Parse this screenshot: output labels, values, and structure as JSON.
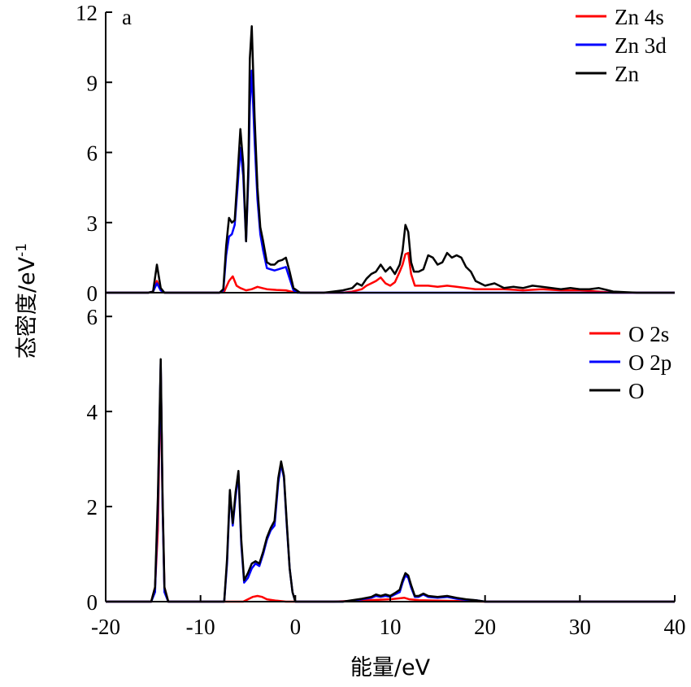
{
  "chart_data": [
    {
      "type": "line",
      "panel_tag": "a",
      "x_range": [
        -20,
        40
      ],
      "ylim": [
        0,
        12
      ],
      "y_ticks": [
        "0",
        "3",
        "6",
        "9",
        "12"
      ],
      "legend_position": "top-right",
      "series": [
        {
          "name": "Zn 4s",
          "color": "#ff0000",
          "x": [
            -20,
            -15.5,
            -15,
            -14.6,
            -14.2,
            -13.8,
            -13,
            -8,
            -7.5,
            -7,
            -6.6,
            -6.2,
            -5.8,
            -5.2,
            -4.6,
            -4,
            -3.5,
            -3,
            -2,
            -1,
            -0.2,
            1,
            3,
            5,
            6,
            7,
            7.5,
            8,
            8.5,
            9,
            9.5,
            10,
            10.5,
            11,
            11.3,
            11.6,
            11.9,
            12.2,
            12.6,
            13,
            14,
            15,
            16,
            17,
            18,
            19,
            20,
            22,
            24,
            26,
            28,
            30,
            32,
            33.5,
            36,
            40
          ],
          "y": [
            0,
            0,
            0.05,
            0.5,
            0.1,
            0,
            0,
            0,
            0.05,
            0.5,
            0.7,
            0.3,
            0.2,
            0.1,
            0.15,
            0.25,
            0.2,
            0.15,
            0.12,
            0.1,
            0.02,
            0,
            0,
            0,
            0.05,
            0.15,
            0.3,
            0.4,
            0.5,
            0.65,
            0.4,
            0.3,
            0.45,
            0.9,
            1.2,
            1.65,
            1.7,
            0.8,
            0.3,
            0.3,
            0.3,
            0.25,
            0.3,
            0.25,
            0.2,
            0.15,
            0.15,
            0.15,
            0.1,
            0.15,
            0.1,
            0.1,
            0.05,
            0,
            0,
            0
          ]
        },
        {
          "name": "Zn 3d",
          "color": "#0000ff",
          "x": [
            -20,
            -15.5,
            -15,
            -14.6,
            -14.2,
            -13.8,
            -13,
            -8,
            -7.6,
            -7.3,
            -7.0,
            -6.7,
            -6.4,
            -6.1,
            -5.8,
            -5.5,
            -5.2,
            -4.95,
            -4.8,
            -4.6,
            -4.3,
            -4.0,
            -3.7,
            -3.4,
            -3.0,
            -2.6,
            -2.2,
            -1.8,
            -1.4,
            -1.0,
            -0.6,
            -0.2,
            0.2,
            3,
            10,
            20,
            30,
            40
          ],
          "y": [
            0,
            0,
            0.05,
            0.4,
            0.1,
            0,
            0,
            0,
            0.1,
            1.6,
            2.4,
            2.5,
            2.9,
            4.5,
            6.2,
            5.0,
            2.2,
            5.0,
            8.0,
            9.5,
            6.5,
            4.0,
            2.5,
            1.8,
            1.05,
            1.0,
            0.95,
            1.0,
            1.05,
            1.1,
            0.6,
            0.1,
            0,
            0,
            0,
            0,
            0,
            0
          ]
        },
        {
          "name": "Zn",
          "color": "#000000",
          "x": [
            -20,
            -15.5,
            -15,
            -14.6,
            -14.2,
            -13.8,
            -13,
            -8,
            -7.6,
            -7.3,
            -7.0,
            -6.7,
            -6.4,
            -6.1,
            -5.8,
            -5.5,
            -5.2,
            -4.95,
            -4.8,
            -4.6,
            -4.3,
            -4.0,
            -3.7,
            -3.4,
            -3.0,
            -2.6,
            -2.2,
            -1.8,
            -1.4,
            -1.0,
            -0.6,
            -0.2,
            0.5,
            2,
            3,
            4,
            5,
            6,
            6.5,
            7,
            7.5,
            8,
            8.5,
            9,
            9.5,
            10,
            10.5,
            11,
            11.3,
            11.6,
            11.9,
            12.2,
            12.5,
            13,
            13.5,
            14,
            14.5,
            15,
            15.5,
            16,
            16.5,
            17,
            17.5,
            18,
            18.5,
            19,
            20,
            21,
            22,
            23,
            24,
            25,
            26,
            27,
            28,
            29,
            30,
            31,
            32,
            33,
            33.5,
            36,
            40
          ],
          "y": [
            0,
            0,
            0.05,
            1.2,
            0.2,
            0,
            0,
            0,
            0.15,
            2.0,
            3.2,
            3.0,
            3.1,
            5.0,
            7.0,
            5.5,
            2.2,
            5.5,
            10.0,
            11.4,
            7.5,
            4.5,
            2.8,
            2.2,
            1.3,
            1.2,
            1.2,
            1.35,
            1.4,
            1.5,
            0.9,
            0.2,
            0,
            0,
            0,
            0.05,
            0.1,
            0.2,
            0.4,
            0.3,
            0.6,
            0.8,
            0.9,
            1.2,
            0.9,
            1.1,
            0.8,
            1.2,
            1.8,
            2.9,
            2.6,
            1.3,
            0.9,
            0.9,
            1.0,
            1.6,
            1.5,
            1.2,
            1.3,
            1.7,
            1.5,
            1.6,
            1.5,
            1.1,
            0.9,
            0.5,
            0.3,
            0.4,
            0.2,
            0.25,
            0.2,
            0.3,
            0.25,
            0.2,
            0.15,
            0.2,
            0.15,
            0.15,
            0.2,
            0.1,
            0.05,
            0,
            0
          ]
        }
      ]
    },
    {
      "type": "line",
      "x_range": [
        -20,
        40
      ],
      "ylim": [
        0,
        6.5
      ],
      "x_ticks": [
        "-20",
        "-10",
        "0",
        "10",
        "20",
        "30",
        "40"
      ],
      "y_ticks": [
        "0",
        "2",
        "4",
        "6"
      ],
      "legend_position": "top-right",
      "series": [
        {
          "name": "O 2s",
          "color": "#ff0000",
          "x": [
            -20,
            -15.2,
            -14.8,
            -14.5,
            -14.2,
            -14.0,
            -13.8,
            -13.4,
            -8,
            -7.5,
            -7,
            -6.5,
            -6,
            -5.5,
            -5,
            -4.5,
            -4,
            -3.5,
            -3,
            -2,
            -1,
            0,
            1,
            4,
            10,
            11.5,
            12,
            13,
            20,
            40
          ],
          "y": [
            0,
            0,
            0.3,
            1.5,
            4.9,
            2.0,
            0.3,
            0,
            0,
            0,
            0,
            0,
            0,
            0,
            0.05,
            0.1,
            0.12,
            0.1,
            0.05,
            0.02,
            0,
            0,
            0,
            0,
            0.05,
            0.08,
            0.05,
            0.03,
            0,
            0
          ]
        },
        {
          "name": "O 2p",
          "color": "#0000ff",
          "x": [
            -20,
            -15.2,
            -14.8,
            -14.5,
            -14.2,
            -14.0,
            -13.8,
            -13.4,
            -8,
            -7.5,
            -7.2,
            -6.9,
            -6.6,
            -6.3,
            -6.0,
            -5.7,
            -5.4,
            -5.0,
            -4.6,
            -4.2,
            -3.8,
            -3.4,
            -3.0,
            -2.6,
            -2.2,
            -1.8,
            -1.5,
            -1.2,
            -0.9,
            -0.6,
            -0.3,
            0,
            3,
            5,
            6,
            7,
            8,
            8.5,
            9,
            9.5,
            10,
            10.5,
            11,
            11.3,
            11.6,
            11.9,
            12.2,
            12.6,
            13,
            13.5,
            14,
            15,
            16,
            17,
            18,
            19,
            20,
            40
          ],
          "y": [
            0,
            0,
            0.2,
            2.0,
            5.0,
            2.0,
            0.2,
            0,
            0,
            0,
            0.8,
            2.3,
            1.6,
            2.2,
            2.7,
            1.2,
            0.4,
            0.5,
            0.7,
            0.8,
            0.75,
            1.0,
            1.3,
            1.5,
            1.6,
            2.5,
            2.9,
            2.6,
            1.6,
            0.7,
            0.2,
            0,
            0,
            0,
            0.02,
            0.05,
            0.08,
            0.12,
            0.1,
            0.12,
            0.1,
            0.15,
            0.2,
            0.4,
            0.55,
            0.5,
            0.3,
            0.1,
            0.1,
            0.15,
            0.1,
            0.08,
            0.1,
            0.06,
            0.04,
            0.03,
            0,
            0
          ]
        },
        {
          "name": "O",
          "color": "#000000",
          "x": [
            -20,
            -15.2,
            -14.8,
            -14.5,
            -14.2,
            -14.0,
            -13.8,
            -13.4,
            -8,
            -7.5,
            -7.2,
            -6.9,
            -6.6,
            -6.3,
            -6.0,
            -5.7,
            -5.4,
            -5.0,
            -4.6,
            -4.2,
            -3.8,
            -3.4,
            -3.0,
            -2.6,
            -2.2,
            -1.8,
            -1.5,
            -1.2,
            -0.9,
            -0.6,
            -0.3,
            0,
            3,
            5,
            6,
            7,
            8,
            8.5,
            9,
            9.5,
            10,
            10.5,
            11,
            11.3,
            11.6,
            11.9,
            12.2,
            12.6,
            13,
            13.5,
            14,
            15,
            16,
            17,
            18,
            19,
            20,
            40
          ],
          "y": [
            0,
            0,
            0.3,
            2.2,
            5.1,
            2.2,
            0.3,
            0,
            0,
            0,
            0.9,
            2.35,
            1.65,
            2.3,
            2.75,
            1.3,
            0.45,
            0.6,
            0.8,
            0.85,
            0.8,
            1.05,
            1.35,
            1.55,
            1.7,
            2.6,
            2.95,
            2.65,
            1.65,
            0.7,
            0.2,
            0,
            0,
            0,
            0.03,
            0.06,
            0.1,
            0.15,
            0.12,
            0.15,
            0.12,
            0.18,
            0.25,
            0.45,
            0.6,
            0.55,
            0.35,
            0.12,
            0.12,
            0.17,
            0.12,
            0.1,
            0.12,
            0.08,
            0.05,
            0.03,
            0,
            0
          ]
        }
      ]
    }
  ],
  "axes": {
    "y_title": "态密度/eV",
    "y_title_sup": "-1",
    "x_title": "能量/eV"
  }
}
